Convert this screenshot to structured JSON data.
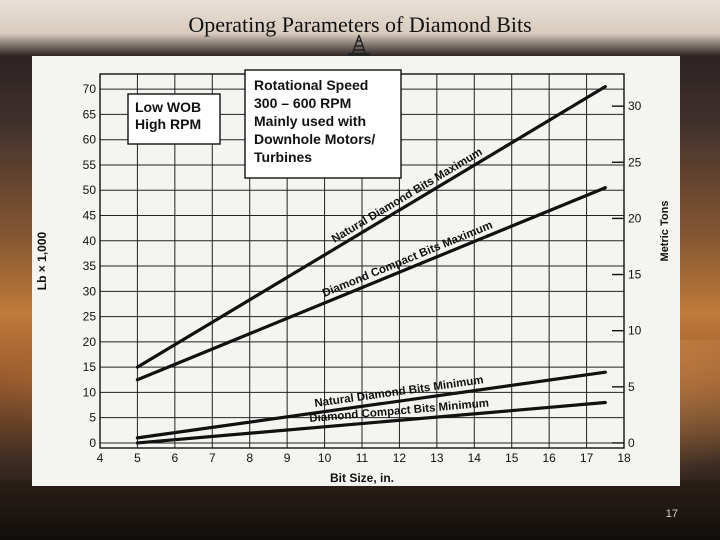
{
  "slide": {
    "title": "Operating Parameters of Diamond Bits",
    "page_number": "17"
  },
  "annotations": {
    "low_wob": [
      "Low WOB",
      "High RPM"
    ],
    "rotational": [
      "Rotational Speed",
      "300 – 600 RPM",
      "Mainly used with",
      "Downhole Motors/",
      "Turbines"
    ]
  },
  "colors": {
    "line": "#111111",
    "grid": "#222222",
    "panel": "#f4f4f1"
  },
  "chart_data": {
    "type": "line",
    "xlabel": "Bit Size, in.",
    "ylabel": "Lb × 1,000",
    "y2label": "Metric Tons",
    "xlim": [
      4,
      18
    ],
    "ylim": [
      0,
      70
    ],
    "y2lim": [
      0,
      30
    ],
    "x_ticks": [
      4,
      5,
      6,
      7,
      8,
      9,
      10,
      11,
      12,
      13,
      14,
      15,
      16,
      17,
      18
    ],
    "y_ticks": [
      0,
      5,
      10,
      15,
      20,
      25,
      30,
      35,
      40,
      45,
      50,
      55,
      60,
      65,
      70
    ],
    "y2_ticks": [
      0,
      5,
      10,
      15,
      20,
      25,
      30
    ],
    "grid": true,
    "series": [
      {
        "name": "Natural Diamond Bits Maximum",
        "x": [
          5,
          17.5
        ],
        "y": [
          15,
          70.5
        ]
      },
      {
        "name": "Diamond Compact Bits Maximum",
        "x": [
          5,
          17.5
        ],
        "y": [
          12.5,
          50.5
        ]
      },
      {
        "name": "Natural Diamond Bits Minimum",
        "x": [
          5,
          17.5
        ],
        "y": [
          1,
          14
        ]
      },
      {
        "name": "Diamond Compact Bits Minimum",
        "x": [
          5,
          17.5
        ],
        "y": [
          0,
          8
        ]
      }
    ]
  }
}
